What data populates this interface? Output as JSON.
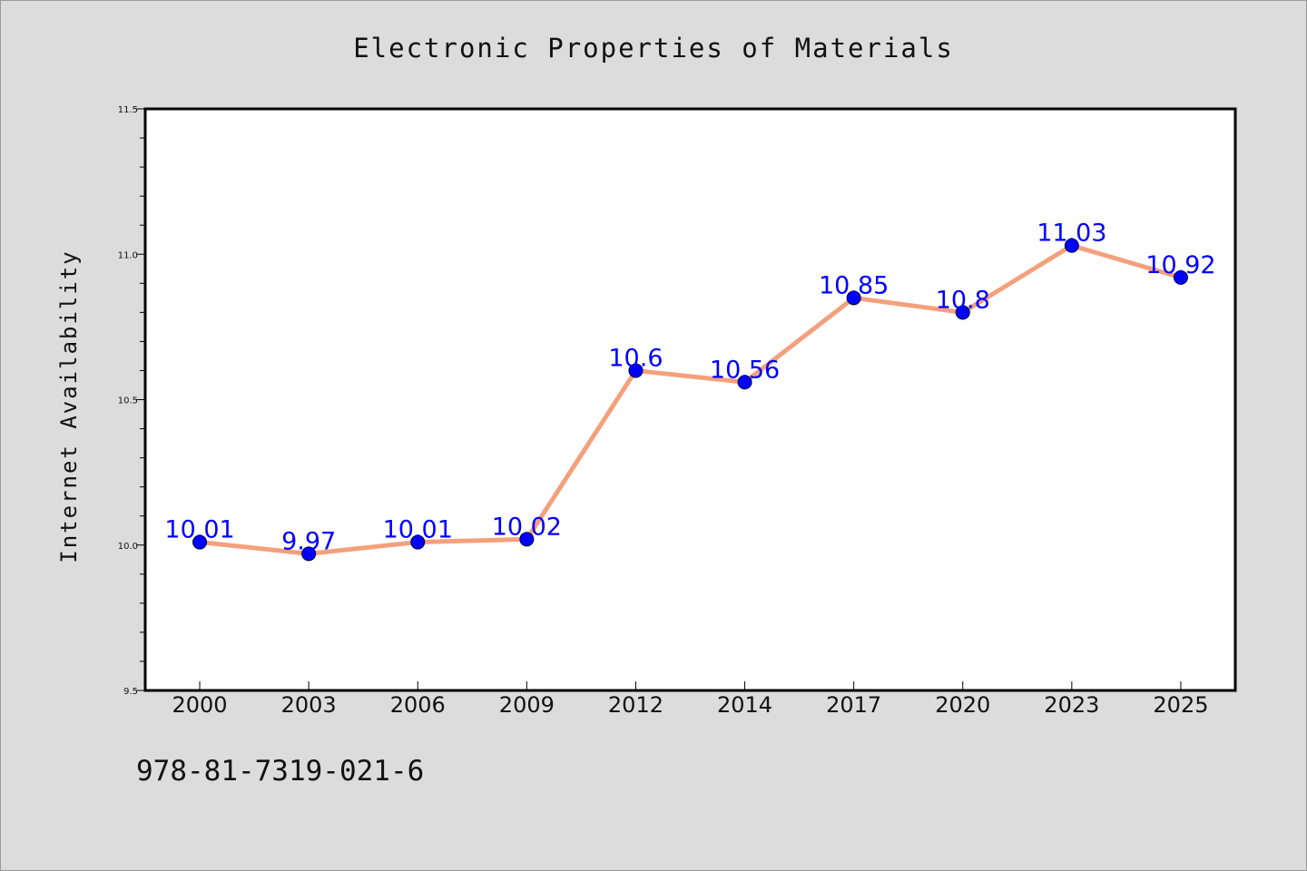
{
  "footer_text": "978-81-7319-021-6",
  "chart_data": {
    "type": "line",
    "title": "Electronic Properties of Materials",
    "xlabel": "",
    "ylabel": "Internet Availability",
    "categories": [
      "2000",
      "2003",
      "2006",
      "2009",
      "2012",
      "2014",
      "2017",
      "2020",
      "2023",
      "2025"
    ],
    "series": [
      {
        "values": [
          10.01,
          9.97,
          10.01,
          10.02,
          10.6,
          10.56,
          10.85,
          10.8,
          11.03,
          10.92
        ],
        "line_color": "#f4a07c",
        "marker_color": "#0000ff"
      }
    ],
    "data_labels": [
      "10.01",
      "9.97",
      "10.01",
      "10.02",
      "10.6",
      "10.56",
      "10.85",
      "10.8",
      "11.03",
      "10.92"
    ],
    "ylim": [
      9.5,
      11.5
    ],
    "yticks": [
      9.5,
      10.0,
      10.5,
      11.0,
      11.5
    ],
    "ytick_labels": [
      "9.5",
      "10.0",
      "10.5",
      "11.0",
      "11.5"
    ],
    "grid": false,
    "legend": "none"
  }
}
